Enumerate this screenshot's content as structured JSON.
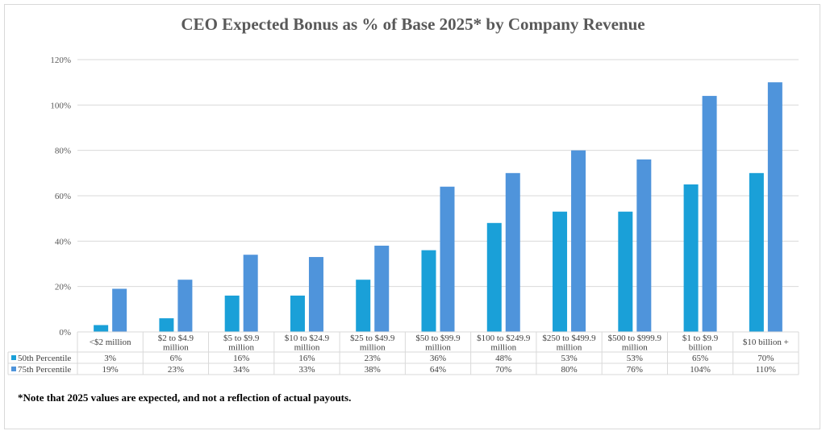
{
  "chart_data": {
    "type": "bar",
    "title": "CEO Expected Bonus as % of Base 2025* by Company Revenue",
    "categories": [
      "<$2 million",
      "$2 to $4.9 million",
      "$5 to $9.9 million",
      "$10 to $24.9 million",
      "$25 to $49.9 million",
      "$50 to $99.9 million",
      "$100 to $249.9 million",
      "$250 to $499.9 million",
      "$500 to $999.9 million",
      "$1 to $9.9 billion",
      "$10 billion +"
    ],
    "series": [
      {
        "name": "50th Percentile",
        "color": "#1aa0d8",
        "values": [
          3,
          6,
          16,
          16,
          23,
          36,
          48,
          53,
          53,
          65,
          70
        ],
        "value_labels": [
          "3%",
          "6%",
          "16%",
          "16%",
          "23%",
          "36%",
          "48%",
          "53%",
          "53%",
          "65%",
          "70%"
        ]
      },
      {
        "name": "75th Percentile",
        "color": "#4f94db",
        "values": [
          19,
          23,
          34,
          33,
          38,
          64,
          70,
          80,
          76,
          104,
          110
        ],
        "value_labels": [
          "19%",
          "23%",
          "34%",
          "33%",
          "38%",
          "64%",
          "70%",
          "80%",
          "76%",
          "104%",
          "110%"
        ]
      }
    ],
    "ylim": [
      0,
      120
    ],
    "yticks": [
      "0%",
      "20%",
      "40%",
      "60%",
      "80%",
      "100%",
      "120%"
    ],
    "grid": true,
    "legend": "data-table"
  },
  "footnote": "*Note that 2025 values are expected, and not a reflection of actual payouts."
}
